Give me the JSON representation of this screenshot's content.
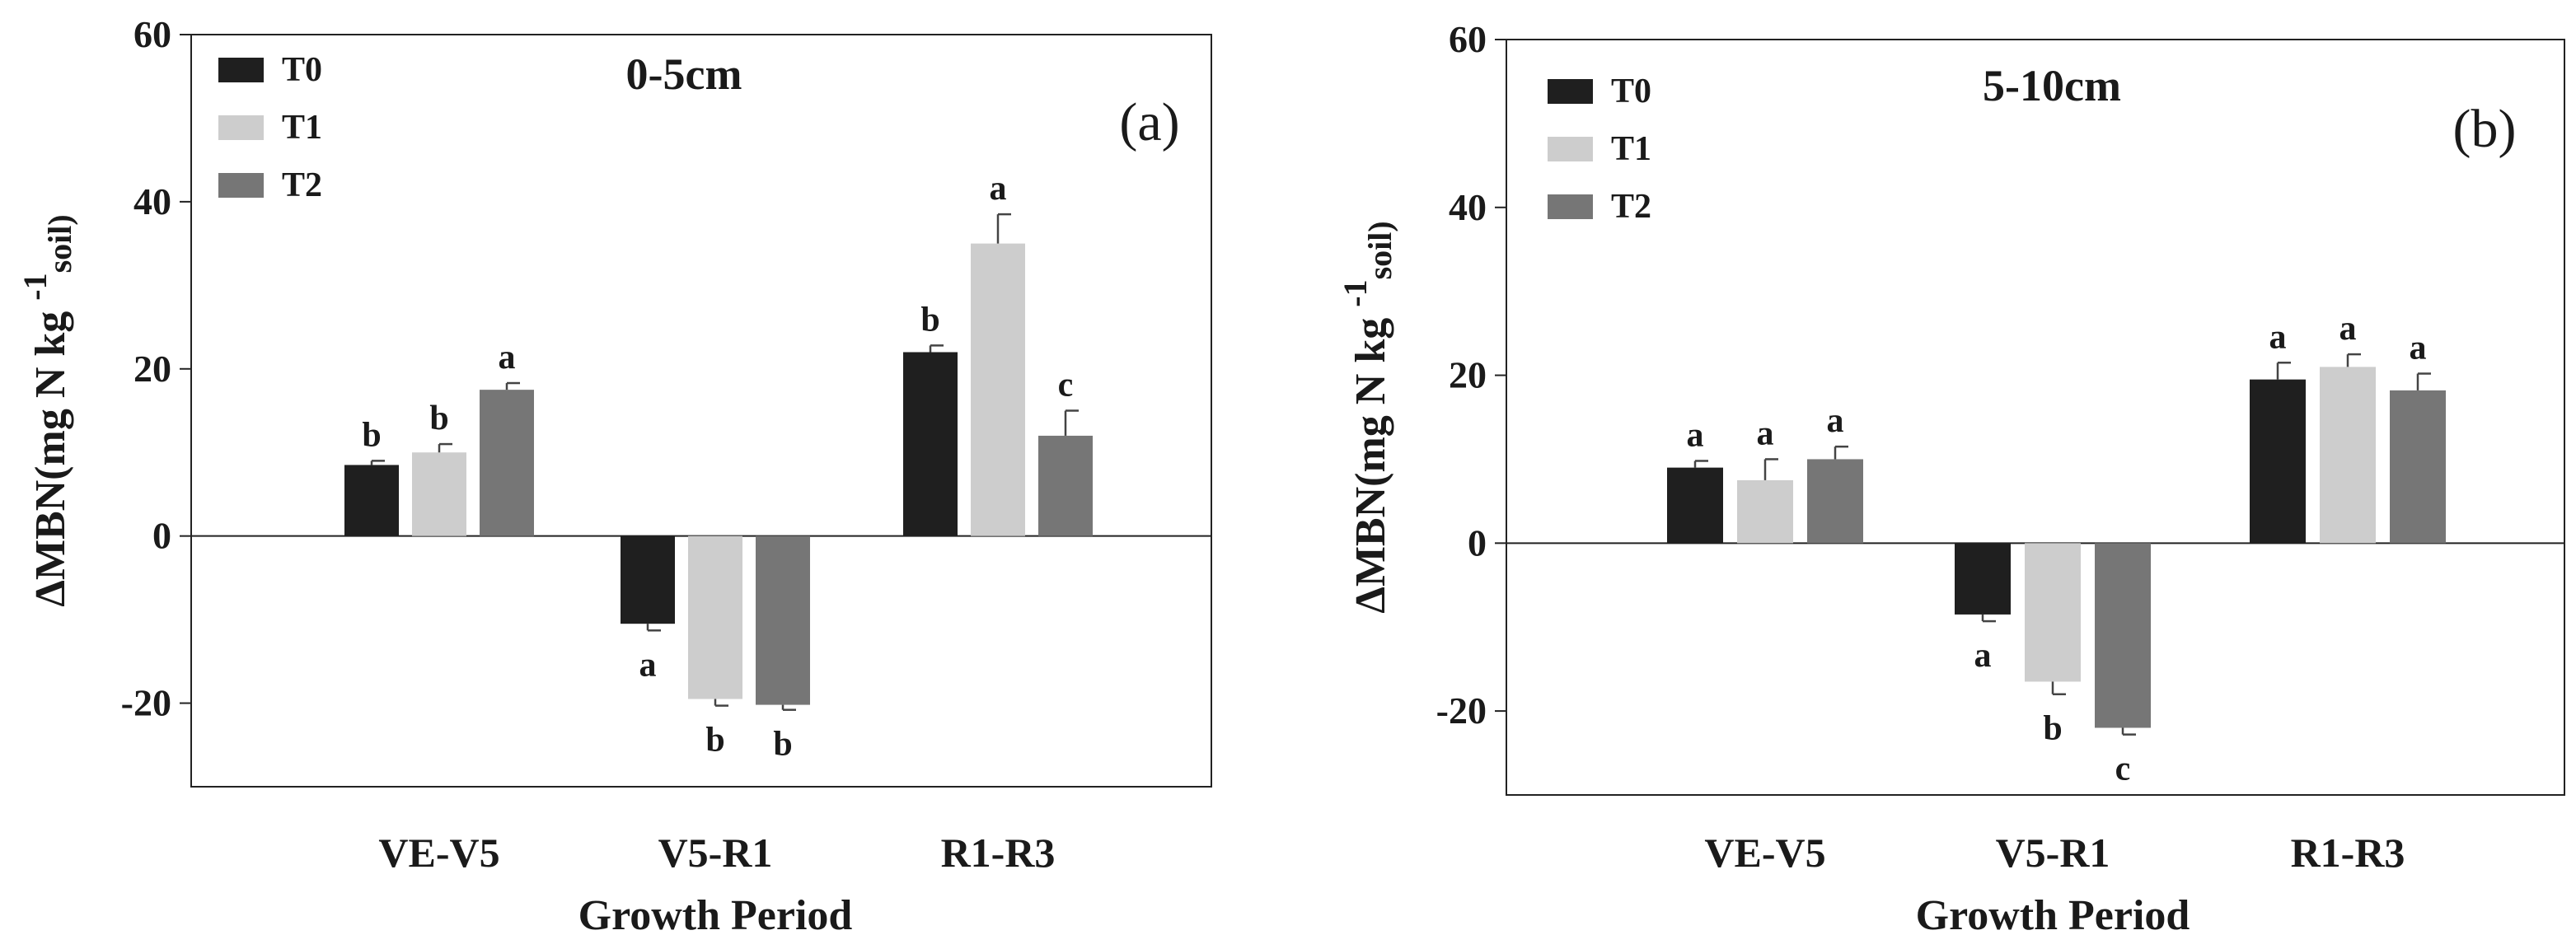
{
  "chart_data": [
    {
      "type": "bar",
      "panel_tag": "(a)",
      "depth": "0-5cm",
      "title": "",
      "xlabel": "Growth Period",
      "ylabel_parts": [
        "ΔMBN(mg N kg ",
        "-1",
        "soil)"
      ],
      "ylim": [
        -30,
        60
      ],
      "yticks": [
        -20,
        0,
        20,
        40,
        60
      ],
      "grid": false,
      "legend_position": "top-left",
      "categories": [
        "VE-V5",
        "V5-R1",
        "R1-R3"
      ],
      "series": [
        {
          "name": "T0",
          "color": "#1f1f1f",
          "values": [
            8.5,
            -10.5,
            22
          ],
          "errors": [
            0.5,
            0.8,
            0.8
          ],
          "sig": [
            "b",
            "a",
            "b"
          ]
        },
        {
          "name": "T1",
          "color": "#cdcdcd",
          "values": [
            10,
            -19.5,
            35
          ],
          "errors": [
            1.0,
            0.8,
            3.5
          ],
          "sig": [
            "b",
            "b",
            "a"
          ]
        },
        {
          "name": "T2",
          "color": "#767676",
          "values": [
            17.5,
            -20.2,
            12
          ],
          "errors": [
            0.8,
            0.6,
            3.0
          ],
          "sig": [
            "a",
            "b",
            "c"
          ]
        }
      ]
    },
    {
      "type": "bar",
      "panel_tag": "(b)",
      "depth": "5-10cm",
      "title": "",
      "xlabel": "Growth Period",
      "ylabel_parts": [
        "ΔMBN(mg N kg ",
        "-1",
        "soil)"
      ],
      "ylim": [
        -30,
        60
      ],
      "yticks": [
        -20,
        0,
        20,
        40,
        60
      ],
      "grid": false,
      "legend_position": "top-left",
      "categories": [
        "VE-V5",
        "V5-R1",
        "R1-R3"
      ],
      "series": [
        {
          "name": "T0",
          "color": "#1f1f1f",
          "values": [
            9,
            -8.5,
            19.5
          ],
          "errors": [
            0.8,
            0.8,
            2.0
          ],
          "sig": [
            "a",
            "a",
            "a"
          ]
        },
        {
          "name": "T1",
          "color": "#cdcdcd",
          "values": [
            7.5,
            -16.5,
            21
          ],
          "errors": [
            2.5,
            1.5,
            1.5
          ],
          "sig": [
            "a",
            "b",
            "a"
          ]
        },
        {
          "name": "T2",
          "color": "#767676",
          "values": [
            10,
            -22,
            18.2
          ],
          "errors": [
            1.5,
            0.8,
            2.0
          ],
          "sig": [
            "a",
            "c",
            "a"
          ]
        }
      ]
    }
  ]
}
